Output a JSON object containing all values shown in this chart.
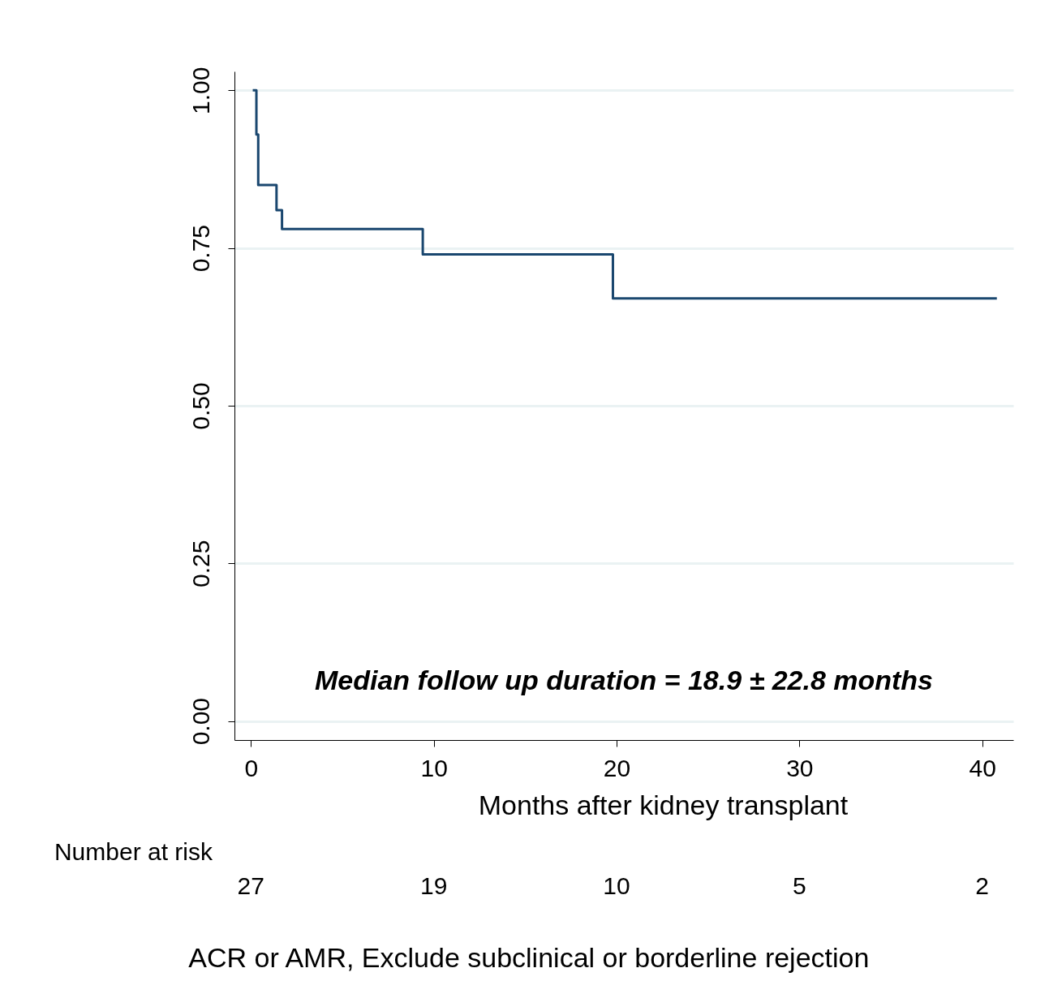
{
  "chart_data": {
    "type": "step",
    "xlabel": "Months after kidney transplant",
    "x": [
      0.1,
      0.3,
      0.4,
      1.4,
      1.7,
      9.4,
      19.8,
      40.8
    ],
    "series": [
      {
        "color": "#1a476f",
        "values": [
          1,
          0.93,
          0.85,
          0.81,
          0.78,
          0.74,
          0.67,
          0.67
        ]
      }
    ],
    "xlim": [
      -0.9,
      41.7
    ],
    "xticks": [
      0,
      10,
      20,
      30,
      40
    ],
    "ylim": [
      -0.03,
      1.03
    ],
    "yticks": [
      {
        "value": 0,
        "label": "0.00"
      },
      {
        "value": 0.25,
        "label": "0.25"
      },
      {
        "value": 0.5,
        "label": "0.50"
      },
      {
        "value": 0.75,
        "label": "0.75"
      },
      {
        "value": 1,
        "label": "1.00"
      }
    ],
    "grid": "y",
    "annotations": [
      "Median follow up duration = 18.9 ± 22.8 months",
      "Number at risk",
      "27",
      "19",
      "10",
      "5",
      "2",
      "ACR or AMR, Exclude subclinical or borderline rejection"
    ]
  }
}
